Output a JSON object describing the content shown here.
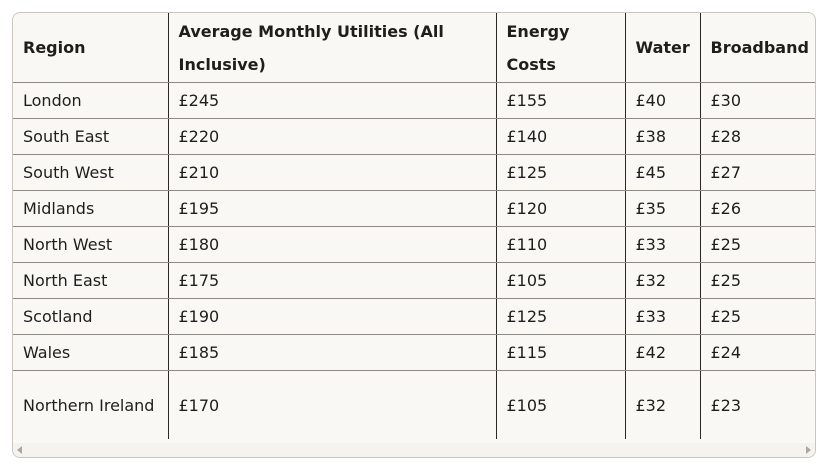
{
  "table": {
    "headers": [
      "Region",
      "Average Monthly Utilities (All Inclusive)",
      "Energy Costs",
      "Water",
      "Broadband"
    ],
    "rows": [
      [
        "London",
        "£245",
        "£155",
        "£40",
        "£30"
      ],
      [
        "South East",
        "£220",
        "£140",
        "£38",
        "£28"
      ],
      [
        "South West",
        "£210",
        "£125",
        "£45",
        "£27"
      ],
      [
        "Midlands",
        "£195",
        "£120",
        "£35",
        "£26"
      ],
      [
        "North West",
        "£180",
        "£110",
        "£33",
        "£25"
      ],
      [
        "North East",
        "£175",
        "£105",
        "£32",
        "£25"
      ],
      [
        "Scotland",
        "£190",
        "£125",
        "£33",
        "£25"
      ],
      [
        "Wales",
        "£185",
        "£115",
        "£42",
        "£24"
      ],
      [
        "Northern Ireland",
        "£170",
        "£105",
        "£32",
        "£23"
      ]
    ]
  },
  "scrollbar": {
    "left_icon": "chevron-left-icon",
    "right_icon": "chevron-right-icon"
  }
}
